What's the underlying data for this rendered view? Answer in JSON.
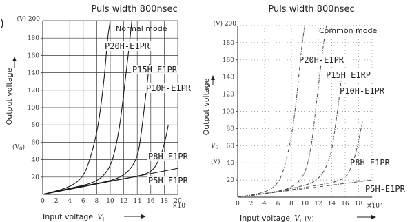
{
  "page": {
    "corner_mark": ")"
  },
  "chart_data": [
    {
      "type": "line",
      "panel_id": "left",
      "title": "Puls width 800nsec",
      "mode_label": "Normal mode",
      "xlabel": "Input voltage",
      "x_symbol": "V",
      "x_subscript": "I",
      "x_unit_multiplier": "×10²",
      "ylabel": "Output voltage",
      "y_unit_top": "(V) 200",
      "y_side_label": "(V",
      "y_side_sub": "0",
      "y_side_label_close": ")",
      "xlim": [
        0,
        20
      ],
      "ylim": [
        0,
        200
      ],
      "x_ticks": [
        "0",
        "2",
        "4",
        "6",
        "8",
        "10",
        "12",
        "14",
        "16",
        "18",
        "20"
      ],
      "y_ticks": [
        "20",
        "40",
        "60",
        "80",
        "100",
        "120",
        "140",
        "160",
        "180"
      ],
      "grid": "on",
      "series": [
        {
          "name": "P20H-E1PR",
          "x": [
            0,
            4,
            6,
            7,
            8,
            8.6,
            9.2,
            9.6,
            10
          ],
          "y": [
            0,
            8,
            20,
            40,
            70,
            100,
            140,
            180,
            200
          ]
        },
        {
          "name": "P15H-E1PR",
          "x": [
            0,
            4,
            8,
            10,
            11,
            11.6,
            12.2,
            12.8,
            13.2
          ],
          "y": [
            0,
            7,
            14,
            30,
            60,
            90,
            130,
            170,
            200
          ]
        },
        {
          "name": "P10H-E1PR",
          "x": [
            0,
            4,
            8,
            12,
            14,
            14.6,
            15.2,
            15.8
          ],
          "y": [
            0,
            6,
            12,
            20,
            40,
            70,
            110,
            150
          ]
        },
        {
          "name": "P8H-E1PR",
          "x": [
            0,
            6,
            12,
            16,
            17.3,
            18.1,
            18.6
          ],
          "y": [
            0,
            10,
            18,
            24,
            40,
            60,
            80
          ]
        },
        {
          "name": "P5H-E1PR",
          "x": [
            0,
            4,
            8,
            12,
            16,
            20
          ],
          "y": [
            0,
            6,
            12,
            18,
            24,
            30
          ]
        }
      ],
      "label_positions": [
        "top",
        "upper",
        "middle",
        "lower",
        "bottom"
      ]
    },
    {
      "type": "line",
      "panel_id": "right",
      "title": "Puls width 800nsec",
      "mode_label": "Common mode",
      "xlabel": "Input voltage",
      "x_symbol": "V",
      "x_subscript": "I",
      "x_unit_paren": "(V)",
      "x_unit_multiplier": "×10²",
      "ylabel": "Output voltage",
      "y_unit_top": "(V) 200",
      "y_side_label": "V",
      "y_side_sub": "0",
      "y_side_unit": "(V)",
      "xlim": [
        0,
        20
      ],
      "ylim": [
        0,
        200
      ],
      "x_ticks": [
        "0",
        "2",
        "4",
        "6",
        "8",
        "10",
        "12",
        "14",
        "16",
        "18",
        "20"
      ],
      "y_ticks": [
        "20",
        "40",
        "60",
        "80",
        "100",
        "120",
        "140",
        "160",
        "180"
      ],
      "grid": "dotted",
      "series": [
        {
          "name": "P20H-E1PR",
          "x": [
            0,
            4,
            6,
            7,
            8,
            8.7,
            9.2,
            9.6,
            10
          ],
          "y": [
            0,
            5,
            15,
            35,
            70,
            110,
            150,
            180,
            200
          ]
        },
        {
          "name": "P15H E1RP",
          "x": [
            0,
            4,
            8,
            10,
            11,
            11.5,
            12.1,
            12.7,
            13.2
          ],
          "y": [
            0,
            4,
            10,
            25,
            60,
            95,
            135,
            175,
            200
          ]
        },
        {
          "name": "P10H-E1PR",
          "x": [
            0,
            4,
            8,
            12,
            13.8,
            14.5,
            15.1,
            15.6
          ],
          "y": [
            0,
            4,
            10,
            18,
            45,
            80,
            115,
            150
          ]
        },
        {
          "name": "P8H-E1PR",
          "x": [
            0,
            6,
            12,
            16,
            17.2,
            18.0,
            18.6
          ],
          "y": [
            0,
            6,
            14,
            20,
            40,
            65,
            90
          ]
        },
        {
          "name": "P5H-E1PR",
          "x": [
            0,
            4,
            8,
            12,
            16,
            20
          ],
          "y": [
            0,
            4,
            8,
            12,
            16,
            20
          ]
        }
      ],
      "label_positions": [
        "top",
        "upper",
        "middle",
        "lower",
        "bottom"
      ]
    }
  ]
}
